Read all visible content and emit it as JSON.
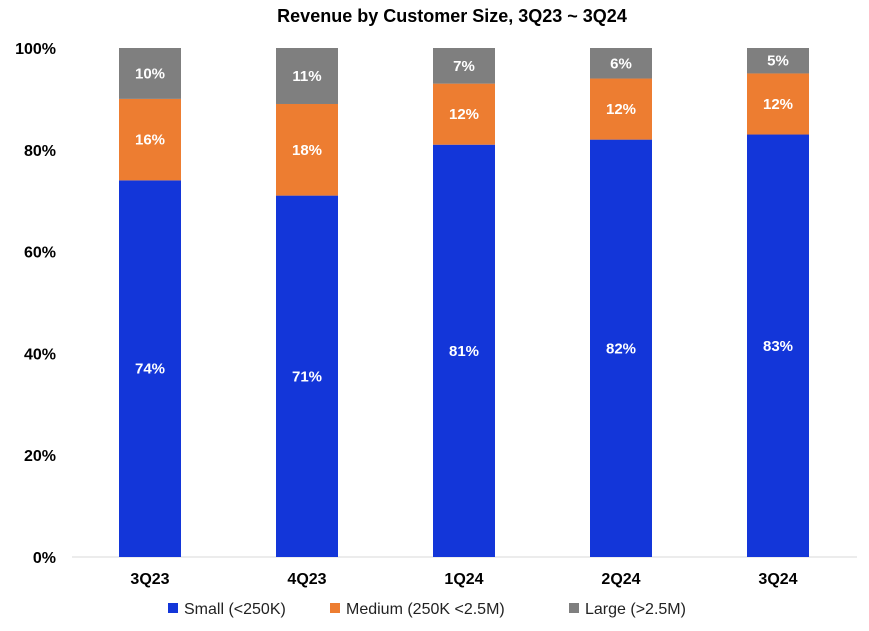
{
  "chart_data": {
    "type": "bar",
    "stacked": true,
    "title": "Revenue by Customer Size, 3Q23 ~ 3Q24",
    "xlabel": "",
    "ylabel": "",
    "ylim": [
      0,
      100
    ],
    "yticks": [
      0,
      20,
      40,
      60,
      80,
      100
    ],
    "ytick_labels": [
      "0%",
      "20%",
      "40%",
      "60%",
      "80%",
      "100%"
    ],
    "categories": [
      "3Q23",
      "4Q23",
      "1Q24",
      "2Q24",
      "3Q24"
    ],
    "series": [
      {
        "name": "Small (<250K)",
        "color": "#1336D9",
        "values": [
          74,
          71,
          81,
          82,
          83
        ],
        "labels": [
          "74%",
          "71%",
          "81%",
          "82%",
          "83%"
        ]
      },
      {
        "name": "Medium (250K <2.5M)",
        "color": "#ED7D31",
        "values": [
          16,
          18,
          12,
          12,
          12
        ],
        "labels": [
          "16%",
          "18%",
          "12%",
          "12%",
          "12%"
        ]
      },
      {
        "name": "Large (>2.5M)",
        "color": "#7F7F7F",
        "values": [
          10,
          11,
          7,
          6,
          5
        ],
        "labels": [
          "10%",
          "11%",
          "7%",
          "6%",
          "5%"
        ]
      }
    ],
    "legend": "bottom",
    "grid": false
  }
}
